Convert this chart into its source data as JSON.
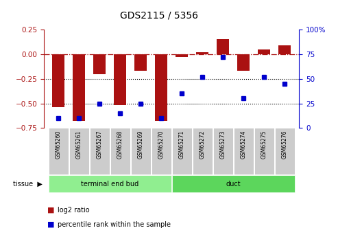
{
  "title": "GDS2115 / 5356",
  "samples": [
    "GSM65260",
    "GSM65261",
    "GSM65267",
    "GSM65268",
    "GSM65269",
    "GSM65270",
    "GSM65271",
    "GSM65272",
    "GSM65273",
    "GSM65274",
    "GSM65275",
    "GSM65276"
  ],
  "log2_ratio": [
    -0.54,
    -0.68,
    -0.2,
    -0.52,
    -0.17,
    -0.68,
    -0.03,
    0.02,
    0.15,
    -0.17,
    0.05,
    0.09
  ],
  "percentile": [
    10,
    10,
    25,
    15,
    25,
    10,
    35,
    52,
    72,
    30,
    52,
    45
  ],
  "tissue_groups": [
    {
      "label": "terminal end bud",
      "start": 0,
      "end": 5,
      "color": "#90EE90"
    },
    {
      "label": "duct",
      "start": 6,
      "end": 11,
      "color": "#5CD65C"
    }
  ],
  "bar_color": "#AA1111",
  "dot_color": "#0000CC",
  "ylim_left": [
    -0.75,
    0.25
  ],
  "ylim_right": [
    0,
    100
  ],
  "yticks_left": [
    -0.75,
    -0.5,
    -0.25,
    0,
    0.25
  ],
  "yticks_right": [
    0,
    25,
    50,
    75,
    100
  ],
  "dotted_lines": [
    -0.25,
    -0.5
  ],
  "background_color": "#ffffff"
}
